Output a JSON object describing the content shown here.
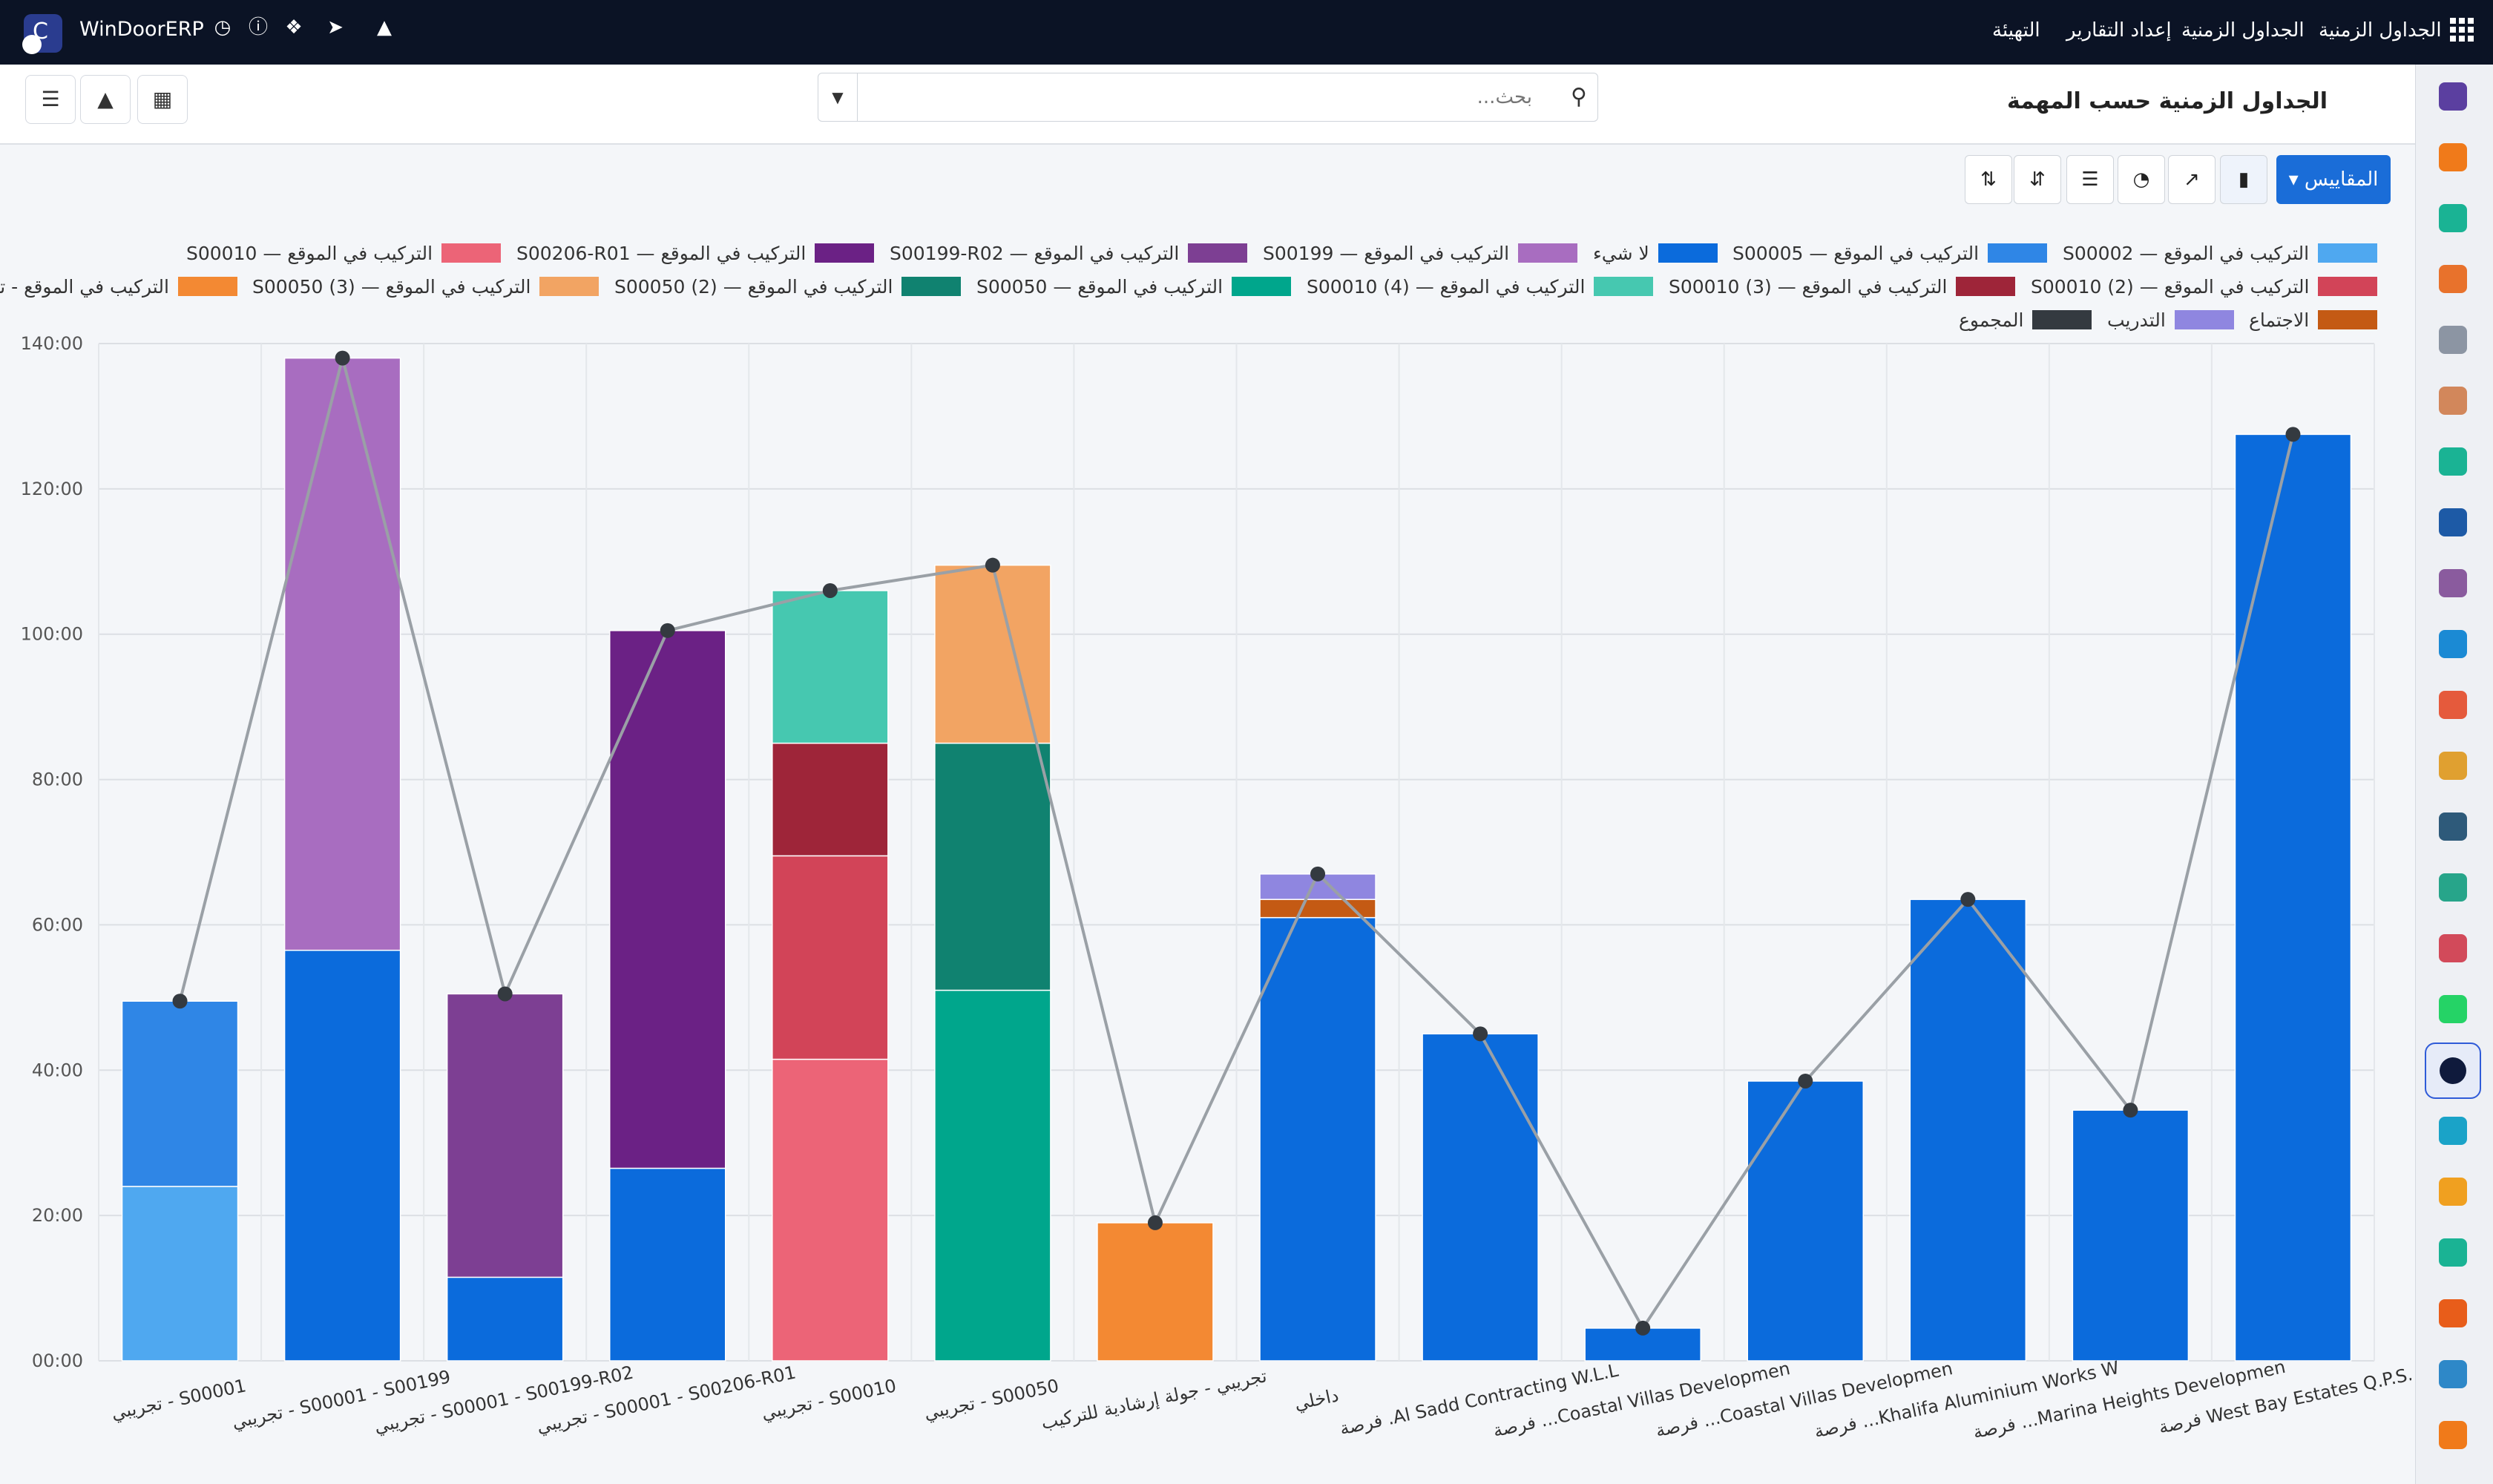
{
  "app": {
    "name": "WinDoorERP",
    "menu": [
      "الجداول الزمنية",
      "الجداول الزمنية",
      "إعداد التقارير",
      "التهيئة"
    ]
  },
  "search": {
    "placeholder": "بحث..."
  },
  "page": {
    "title": "الجداول الزمنية حسب المهمة"
  },
  "toolbar": {
    "measures_label": "المقاييس"
  },
  "icons": {
    "topbar": [
      "clock-icon",
      "help-icon",
      "chat-icon",
      "megaphone-icon",
      "bell-icon",
      "apps-grid-icon"
    ],
    "views": [
      "list-view-icon",
      "graph-view-icon",
      "pivot-view-icon"
    ],
    "chart_tools": [
      "bar-chart-icon",
      "line-chart-icon",
      "pie-chart-icon",
      "stacked-icon",
      "sort-descending-icon",
      "sort-ascending-icon"
    ],
    "sidebar_apps": [
      "mail-app-icon",
      "chat-app-icon",
      "discuss-app-icon",
      "reports-app-icon",
      "inventory-app-icon",
      "photo-app-icon",
      "tasks-app-icon",
      "knowledge-app-icon",
      "box-app-icon",
      "sales-app-icon",
      "team-app-icon",
      "calendar-app-icon",
      "sign-app-icon",
      "contacts-app-icon",
      "dashboard-app-icon",
      "whatsapp-app-icon",
      "timesheets-app-icon",
      "website-app-icon",
      "send-app-icon",
      "bank-app-icon",
      "package-app-icon",
      "pie-app-icon",
      "settings-app-icon"
    ],
    "sidebar_colors": [
      "#5b3fa0",
      "#f07a1a",
      "#1ab394",
      "#e8722c",
      "#8c95a3",
      "#d2875b",
      "#1ab394",
      "#1d5aa6",
      "#8a5b9e",
      "#1b8ad4",
      "#e55a3c",
      "#e0a030",
      "#2e5a7a",
      "#27a58a",
      "#d24a5a",
      "#25d366",
      "#0f1a3c",
      "#1aa3c8",
      "#f0a020",
      "#1ab394",
      "#e85d1a",
      "#2e88c8",
      "#f07a1a"
    ]
  },
  "chart_data": {
    "type": "bar",
    "stacked": true,
    "title": "",
    "xlabel": "",
    "ylabel": "",
    "ylim": [
      0,
      140
    ],
    "y_ticks": [
      "00:00",
      "20:00",
      "40:00",
      "60:00",
      "80:00",
      "100:00",
      "120:00",
      "140:00"
    ],
    "grid": true,
    "legend_position": "top-right",
    "categories": [
      "S00001 - تجريبي",
      "S00001 - S00199 - تجريبي",
      "S00001 - S00199-R02 - تجريبي",
      "S00001 - S00206-R01 - تجريبي",
      "S00010 - تجريبي",
      "S00050 - تجريبي",
      "تجريبي - جولة إرشادية للتركيب",
      "داخلي",
      "Al Sadd Contracting W.L.L. فرصة",
      "Coastal Villas Developmen... فرصة",
      "Coastal Villas Developmen... فرصة",
      "Khalifa Aluminium Works W... فرصة",
      "Marina Heights Developmen... فرصة",
      "West Bay Estates Q.P.S.C فرصة"
    ],
    "series": [
      {
        "name": "التركيب في الموقع — S00002",
        "color": "#4fa8f0",
        "values": [
          24,
          0,
          0,
          0,
          0,
          0,
          0,
          0,
          0,
          0,
          0,
          0,
          0,
          0
        ]
      },
      {
        "name": "التركيب في الموقع — S00005",
        "color": "#2f86e6",
        "values": [
          25.5,
          0,
          0,
          0,
          0,
          0,
          0,
          0,
          0,
          0,
          0,
          0,
          0,
          0
        ]
      },
      {
        "name": "لا شيء",
        "color": "#0b6bdc",
        "values": [
          0,
          56.5,
          11.5,
          26.5,
          0,
          0,
          0,
          61,
          45,
          4.5,
          38.5,
          63.5,
          34.5,
          127.5
        ]
      },
      {
        "name": "التركيب في الموقع — S00199",
        "color": "#a86dc0",
        "values": [
          0,
          81.5,
          0,
          0,
          0,
          0,
          0,
          0,
          0,
          0,
          0,
          0,
          0,
          0
        ]
      },
      {
        "name": "التركيب في الموقع — S00199-R02",
        "color": "#7d3f93",
        "values": [
          0,
          0,
          39,
          0,
          0,
          0,
          0,
          0,
          0,
          0,
          0,
          0,
          0,
          0
        ]
      },
      {
        "name": "التركيب في الموقع — S00206-R01",
        "color": "#6b2185",
        "values": [
          0,
          0,
          0,
          74,
          0,
          0,
          0,
          0,
          0,
          0,
          0,
          0,
          0,
          0
        ]
      },
      {
        "name": "التركيب في الموقع — S00010",
        "color": "#ec6477",
        "values": [
          0,
          0,
          0,
          0,
          41.5,
          0,
          0,
          0,
          0,
          0,
          0,
          0,
          0,
          0
        ]
      },
      {
        "name": "التركيب في الموقع — S00010 (2)",
        "color": "#d24458",
        "values": [
          0,
          0,
          0,
          0,
          28,
          0,
          0,
          0,
          0,
          0,
          0,
          0,
          0,
          0
        ]
      },
      {
        "name": "التركيب في الموقع — S00010 (3)",
        "color": "#9e2539",
        "values": [
          0,
          0,
          0,
          0,
          15.5,
          0,
          0,
          0,
          0,
          0,
          0,
          0,
          0,
          0
        ]
      },
      {
        "name": "التركيب في الموقع — S00010 (4)",
        "color": "#46c8b0",
        "values": [
          0,
          0,
          0,
          0,
          21,
          0,
          0,
          0,
          0,
          0,
          0,
          0,
          0,
          0
        ]
      },
      {
        "name": "التركيب في الموقع — S00050",
        "color": "#00a68c",
        "values": [
          0,
          0,
          0,
          0,
          0,
          51,
          0,
          0,
          0,
          0,
          0,
          0,
          0,
          0
        ]
      },
      {
        "name": "التركيب في الموقع — S00050 (2)",
        "color": "#108270",
        "values": [
          0,
          0,
          0,
          0,
          0,
          34,
          0,
          0,
          0,
          0,
          0,
          0,
          0,
          0
        ]
      },
      {
        "name": "التركيب في الموقع — S00050 (3)",
        "color": "#f2a463",
        "values": [
          0,
          0,
          0,
          0,
          0,
          24.5,
          0,
          0,
          0,
          0,
          0,
          0,
          0,
          0
        ]
      },
      {
        "name": "التركيب في الموقع - تجريبي",
        "color": "#f38933",
        "values": [
          0,
          0,
          0,
          0,
          0,
          0,
          19,
          0,
          0,
          0,
          0,
          0,
          0,
          0
        ]
      },
      {
        "name": "الاجتماع",
        "color": "#c45a14",
        "values": [
          0,
          0,
          0,
          0,
          0,
          0,
          0,
          2.5,
          0,
          0,
          0,
          0,
          0,
          0
        ]
      },
      {
        "name": "التدريب",
        "color": "#8f86e0",
        "values": [
          0,
          0,
          0,
          0,
          0,
          0,
          0,
          3.5,
          0,
          0,
          0,
          0,
          0,
          0
        ]
      }
    ],
    "total_line": {
      "name": "المجموع",
      "color": "#343a40",
      "values": [
        49.5,
        138,
        50.5,
        100.5,
        106,
        109.5,
        19,
        67,
        45,
        4.5,
        38.5,
        63.5,
        34.5,
        127.5
      ]
    }
  }
}
